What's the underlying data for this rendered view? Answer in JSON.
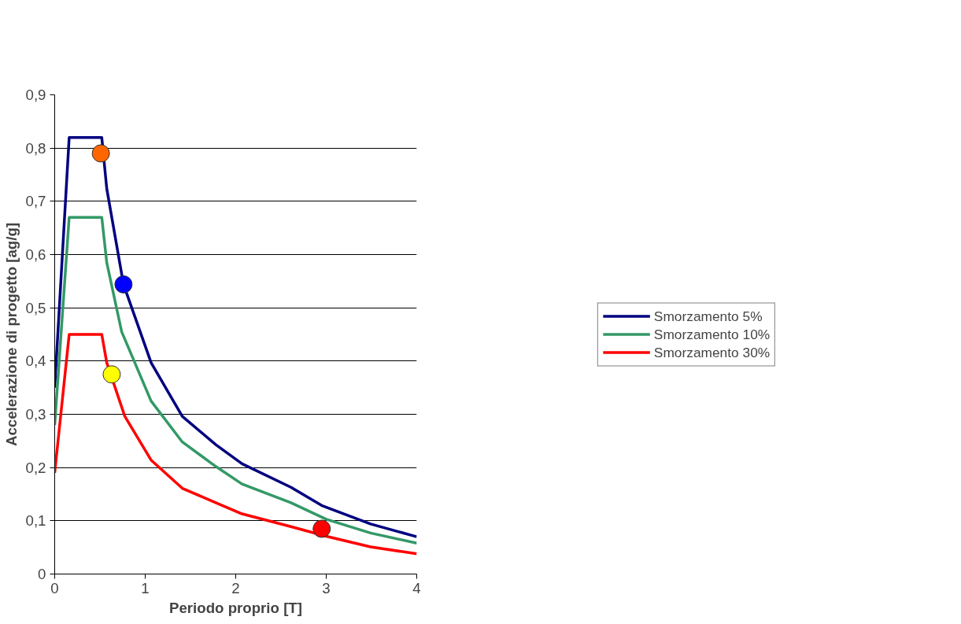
{
  "chart_data": {
    "type": "line",
    "xlabel": "Periodo proprio [T]",
    "ylabel": "Accelerazione di progetto [ag/g]",
    "xlim": [
      0,
      4
    ],
    "xticks": [
      0,
      1,
      2,
      3,
      4
    ],
    "ylim": [
      0,
      0.9
    ],
    "yticks": [
      0,
      {
        "value": 0.1,
        "label": "0,1"
      },
      {
        "value": 0.2,
        "label": "0,2"
      },
      {
        "value": 0.3,
        "label": "0,3"
      },
      {
        "value": 0.4,
        "label": "0,4"
      },
      {
        "value": 0.5,
        "label": "0,5"
      },
      {
        "value": 0.6,
        "label": "0,6"
      },
      {
        "value": 0.7,
        "label": "0,7"
      },
      {
        "value": 0.8,
        "label": "0,8"
      },
      {
        "value": 0.9,
        "label": "0,9"
      }
    ],
    "grid": "y",
    "legend": "right",
    "line_style": "solid",
    "series": [
      {
        "name": "Smorzamento 5%",
        "color": "#000080",
        "x": [
          0,
          0.16,
          0.52,
          0.575,
          0.76,
          1.065,
          1.41,
          1.78,
          2.07,
          2.61,
          2.96,
          3.49,
          4.0
        ],
        "values": [
          0.35,
          0.82,
          0.82,
          0.724,
          0.544,
          0.397,
          0.296,
          0.243,
          0.207,
          0.163,
          0.128,
          0.094,
          0.07
        ]
      },
      {
        "name": "Smorzamento 10%",
        "color": "#339966",
        "x": [
          0,
          0.16,
          0.52,
          0.575,
          0.74,
          1.065,
          1.41,
          1.78,
          2.07,
          2.61,
          3.0,
          3.49,
          4.0
        ],
        "values": [
          0.28,
          0.67,
          0.67,
          0.585,
          0.455,
          0.325,
          0.248,
          0.202,
          0.169,
          0.134,
          0.103,
          0.077,
          0.058
        ]
      },
      {
        "name": "Smorzamento 30%",
        "color": "#ff0000",
        "x": [
          0,
          0.16,
          0.52,
          0.575,
          0.775,
          1.065,
          1.41,
          1.78,
          2.07,
          2.61,
          3.0,
          3.49,
          4.0
        ],
        "values": [
          0.19,
          0.45,
          0.45,
          0.397,
          0.296,
          0.214,
          0.161,
          0.134,
          0.113,
          0.089,
          0.071,
          0.051,
          0.038
        ]
      },
      {
        "type": "scatter",
        "marker": "circle",
        "color": "#ff6600",
        "x": [
          0.51
        ],
        "values": [
          0.79
        ]
      },
      {
        "type": "scatter",
        "marker": "circle",
        "color": "#0000ff",
        "x": [
          0.76
        ],
        "values": [
          0.544
        ]
      },
      {
        "type": "scatter",
        "marker": "circle",
        "color": "#ffff00",
        "x": [
          0.63
        ],
        "values": [
          0.375
        ]
      },
      {
        "type": "scatter",
        "marker": "circle",
        "color": "#ff0000",
        "x": [
          2.95
        ],
        "values": [
          0.085
        ]
      }
    ]
  }
}
